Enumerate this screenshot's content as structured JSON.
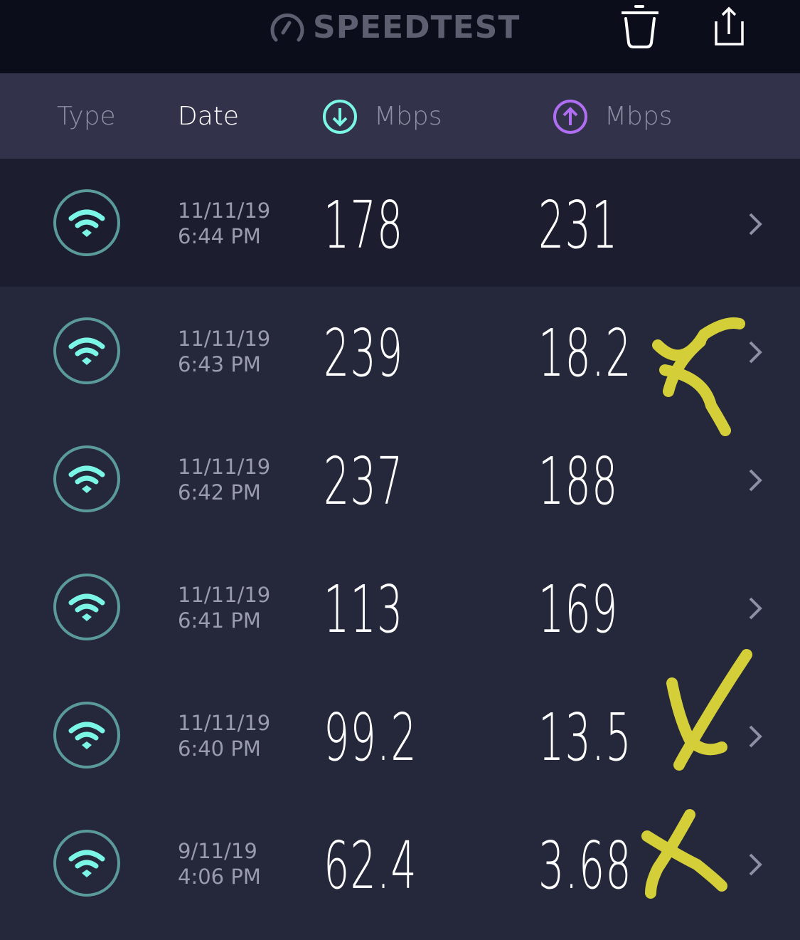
{
  "app": {
    "title": "SPEEDTEST"
  },
  "toolbar": {
    "delete_icon": "trash-icon",
    "share_icon": "share-icon"
  },
  "header": {
    "type": "Type",
    "date": "Date",
    "download": "Mbps",
    "upload": "Mbps",
    "download_color": "#7af5e6",
    "upload_color": "#b06ef2"
  },
  "results": [
    {
      "date": "11/11/19",
      "time": "6:44 PM",
      "download": "178",
      "upload": "231",
      "marked": false
    },
    {
      "date": "11/11/19",
      "time": "6:43 PM",
      "download": "239",
      "upload": "18.2",
      "marked": true
    },
    {
      "date": "11/11/19",
      "time": "6:42 PM",
      "download": "237",
      "upload": "188",
      "marked": false
    },
    {
      "date": "11/11/19",
      "time": "6:41 PM",
      "download": "113",
      "upload": "169",
      "marked": false
    },
    {
      "date": "11/11/19",
      "time": "6:40 PM",
      "download": "99.2",
      "upload": "13.5",
      "marked": true
    },
    {
      "date": "9/11/19",
      "time": "4:06 PM",
      "download": "62.4",
      "upload": "3.68",
      "marked": true
    }
  ],
  "colors": {
    "wifi": "#7af5e6",
    "ring": "#5a9a9a",
    "mark": "#e8e23a"
  }
}
